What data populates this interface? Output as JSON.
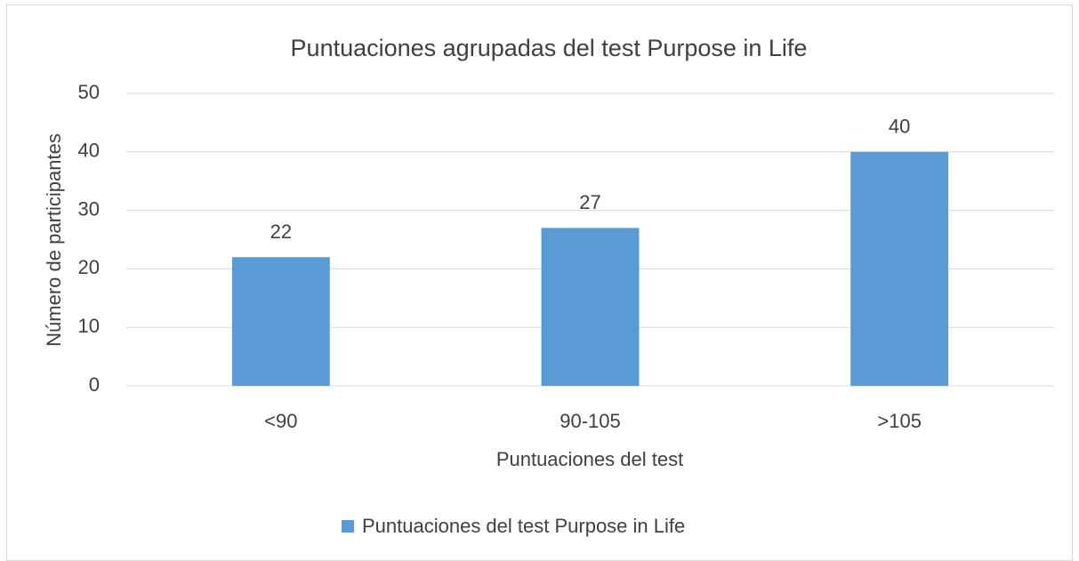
{
  "chart_data": {
    "type": "bar",
    "title": "Puntuaciones agrupadas del test Purpose in Life",
    "x_label": "Puntuaciones del test",
    "y_label": "Número de participantes",
    "categories": [
      "<90",
      "90-105",
      ">105"
    ],
    "series": [
      {
        "name": "Puntuaciones del test Purpose in Life",
        "color": "#5b9bd5",
        "values": [
          22,
          27,
          40
        ]
      }
    ],
    "ylim": [
      0,
      50
    ],
    "yticks": [
      0,
      10,
      20,
      30,
      40,
      50
    ],
    "grid": true,
    "legend": "bottom"
  }
}
